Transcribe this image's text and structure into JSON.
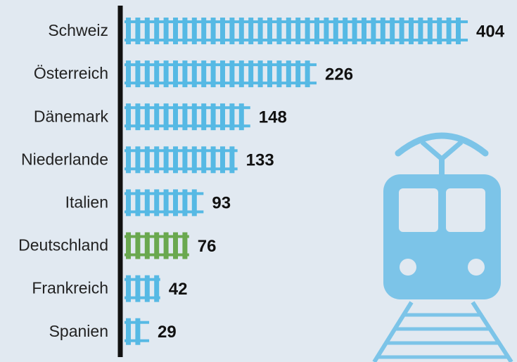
{
  "chart_data": {
    "type": "bar",
    "orientation": "horizontal",
    "categories": [
      "Schweiz",
      "Österreich",
      "Dänemark",
      "Niederlande",
      "Italien",
      "Deutschland",
      "Frankreich",
      "Spanien"
    ],
    "values": [
      404,
      226,
      148,
      133,
      93,
      76,
      42,
      29
    ],
    "colors": [
      "#56b9e4",
      "#56b9e4",
      "#56b9e4",
      "#56b9e4",
      "#56b9e4",
      "#6aa84f",
      "#56b9e4",
      "#56b9e4"
    ]
  }
}
